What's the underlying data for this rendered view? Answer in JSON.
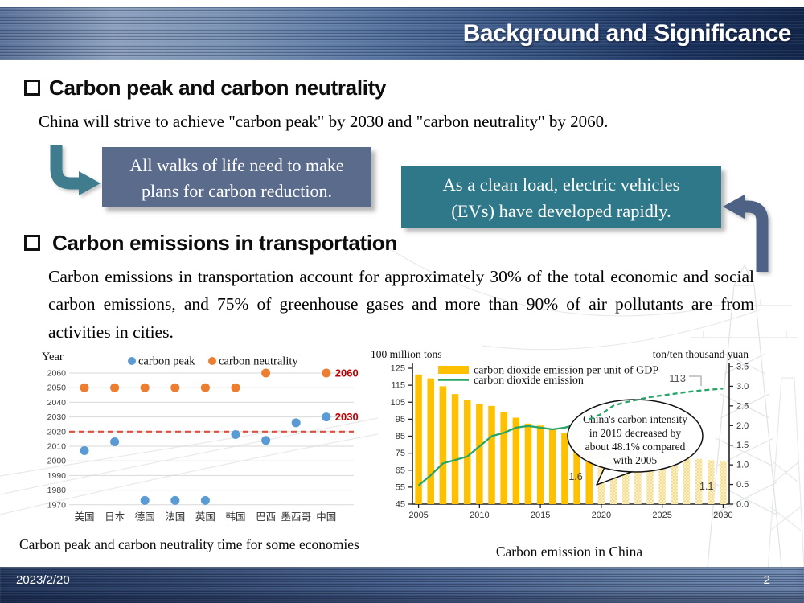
{
  "header": {
    "title": "Background and Significance"
  },
  "sections": {
    "peak": {
      "heading": "Carbon peak and carbon neutrality",
      "body": "China will strive to achieve \"carbon peak\" by 2030 and \"carbon neutrality\" by 2060."
    },
    "transport": {
      "heading": "Carbon emissions in transportation",
      "body": "Carbon emissions in transportation account for approximately 30% of the total economic and social carbon emissions, and 75% of greenhouse gases and more than 90% of air pollutants are from activities in cities."
    }
  },
  "callouts": {
    "left": {
      "line1": "All walks of life need to make",
      "line2": "plans for carbon reduction.",
      "bg": "#5a6b8c"
    },
    "right": {
      "line1": "As a clean load, electric vehicles",
      "line2": "(EVs) have developed rapidly.",
      "bg": "#2f7889"
    }
  },
  "captions": {
    "left": "Carbon peak and carbon neutrality time for some economies",
    "right": "Carbon emission in China"
  },
  "footer": {
    "date": "2023/2/20",
    "page": "2"
  },
  "chart_data": [
    {
      "type": "scatter",
      "title": "Carbon peak and carbon neutrality time for some economies",
      "ylabel": "Year",
      "categories": [
        "美国",
        "日本",
        "德国",
        "法国",
        "英国",
        "韩国",
        "巴西",
        "墨西哥",
        "中国"
      ],
      "yticks": [
        2060,
        2050,
        2040,
        2030,
        2020,
        2010,
        2000,
        1990,
        1980,
        1970
      ],
      "ylim": [
        1970,
        2060
      ],
      "grid": true,
      "legend_position": "top",
      "series": [
        {
          "name": "carbon peak",
          "color": "#5B9BD5",
          "values": [
            2007,
            2013,
            1973,
            1973,
            1973,
            2018,
            2014,
            2026,
            2030
          ]
        },
        {
          "name": "carbon neutrality",
          "color": "#ED7D31",
          "values": [
            2050,
            2050,
            2050,
            2050,
            2050,
            2050,
            2060,
            null,
            2060
          ]
        }
      ],
      "reference_line": {
        "year": 2020,
        "color": "#D94F3D",
        "style": "dashed"
      },
      "point_labels": [
        {
          "text": "2060",
          "col": 8,
          "year": 2060,
          "color": "#C00000"
        },
        {
          "text": "2030",
          "col": 8,
          "year": 2030,
          "color": "#C00000"
        }
      ]
    },
    {
      "type": "combo_bar_line",
      "title": "Carbon emission in China",
      "left_axis": {
        "label": "100 million tons",
        "ticks": [
          125,
          115,
          105,
          95,
          85,
          75,
          65,
          55,
          45
        ],
        "range": [
          45,
          125
        ]
      },
      "right_axis": {
        "label": "ton/ten thousand yuan",
        "ticks": [
          3.5,
          3.0,
          2.5,
          2.0,
          1.5,
          1.0,
          0.5,
          0.0
        ],
        "range": [
          0,
          3.5
        ]
      },
      "x": [
        2005,
        2006,
        2007,
        2008,
        2009,
        2010,
        2011,
        2012,
        2013,
        2014,
        2015,
        2016,
        2017,
        2018,
        2019,
        2020,
        2021,
        2022,
        2023,
        2024,
        2025,
        2026,
        2027,
        2028,
        2029,
        2030
      ],
      "xticks": [
        2005,
        2010,
        2015,
        2020,
        2025,
        2030
      ],
      "projection_start_year": 2020,
      "series": [
        {
          "name": "carbon dioxide emission per unit of GDP",
          "type": "bar",
          "axis": "right",
          "color": "#FFC000",
          "values": [
            3.3,
            3.2,
            3.0,
            2.8,
            2.65,
            2.55,
            2.5,
            2.35,
            2.2,
            2.05,
            2.0,
            1.9,
            1.8,
            1.7,
            1.6,
            1.45,
            1.3,
            1.3,
            1.28,
            1.27,
            1.25,
            1.22,
            1.18,
            1.15,
            1.12,
            1.1
          ]
        },
        {
          "name": "carbon dioxide emission",
          "type": "line",
          "axis": "left",
          "color": "#27A567",
          "values": [
            56,
            62,
            69,
            71,
            73,
            79,
            85,
            87,
            90,
            91,
            90,
            89,
            90,
            92,
            95,
            98,
            103,
            105,
            106.5,
            108,
            109,
            110,
            111,
            111.8,
            112.4,
            113
          ]
        }
      ],
      "annotations": [
        {
          "text": "113",
          "anchor": "line-end"
        },
        {
          "text": "1.6",
          "anchor": "bar-2019"
        },
        {
          "text": "1.1",
          "anchor": "bar-2030"
        }
      ],
      "callout": {
        "lines": [
          "China's carbon intensity",
          "in 2019 decreased by",
          "about 48.1% compared",
          "with 2005"
        ]
      }
    }
  ]
}
